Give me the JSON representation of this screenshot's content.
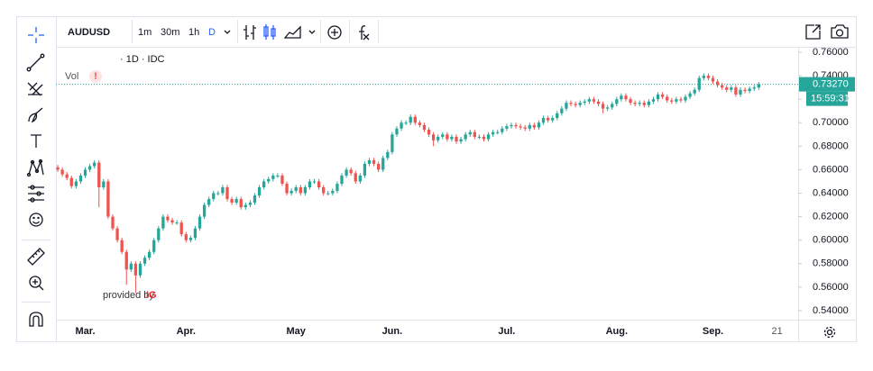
{
  "toolbar": {
    "symbol": "AUDUSD",
    "intervals": [
      "1m",
      "30m",
      "1h",
      "D"
    ]
  },
  "chart_data": {
    "type": "candlestick",
    "legend_text": "· 1D · IDC",
    "volume_label": "Vol",
    "volume_warning": "!",
    "attribution": "provided by",
    "attribution_brand": "IG",
    "up_color": "#26a69a",
    "down_color": "#ef5350",
    "grid": false,
    "last_price": {
      "value": 0.7327,
      "label": "0.73270"
    },
    "countdown": "15:59:31",
    "ylim": [
      0.5323,
      0.7646
    ],
    "yticks": [
      {
        "value": 0.54,
        "label": "0.54000"
      },
      {
        "value": 0.56,
        "label": "0.56000"
      },
      {
        "value": 0.58,
        "label": "0.58000"
      },
      {
        "value": 0.6,
        "label": "0.60000"
      },
      {
        "value": 0.62,
        "label": "0.62000"
      },
      {
        "value": 0.64,
        "label": "0.64000"
      },
      {
        "value": 0.66,
        "label": "0.66000"
      },
      {
        "value": 0.68,
        "label": "0.68000"
      },
      {
        "value": 0.7,
        "label": "0.70000"
      },
      {
        "value": 0.72,
        "label": "0.72000"
      },
      {
        "value": 0.74,
        "label": "0.74000"
      },
      {
        "value": 0.76,
        "label": "0.76000"
      }
    ],
    "xlim": [
      -0.4,
      161.6
    ],
    "xticks": [
      {
        "value": 6,
        "label": "Mar."
      },
      {
        "value": 28,
        "label": "Apr."
      },
      {
        "value": 52,
        "label": "May"
      },
      {
        "value": 73,
        "label": "Jun."
      },
      {
        "value": 98,
        "label": "Jul."
      },
      {
        "value": 122,
        "label": "Aug."
      },
      {
        "value": 143,
        "label": "Sep."
      },
      {
        "value": 157,
        "label": "21"
      }
    ],
    "ohlc": [
      [
        0.662,
        0.664,
        0.658,
        0.66
      ],
      [
        0.66,
        0.662,
        0.654,
        0.656
      ],
      [
        0.656,
        0.658,
        0.651,
        0.653
      ],
      [
        0.653,
        0.655,
        0.644,
        0.646
      ],
      [
        0.646,
        0.652,
        0.644,
        0.65
      ],
      [
        0.65,
        0.657,
        0.648,
        0.655
      ],
      [
        0.655,
        0.662,
        0.653,
        0.66
      ],
      [
        0.66,
        0.665,
        0.658,
        0.663
      ],
      [
        0.663,
        0.668,
        0.661,
        0.666
      ],
      [
        0.666,
        0.668,
        0.628,
        0.645
      ],
      [
        0.645,
        0.652,
        0.643,
        0.65
      ],
      [
        0.65,
        0.652,
        0.618,
        0.62
      ],
      [
        0.62,
        0.622,
        0.608,
        0.61
      ],
      [
        0.61,
        0.612,
        0.598,
        0.6
      ],
      [
        0.6,
        0.602,
        0.588,
        0.59
      ],
      [
        0.59,
        0.592,
        0.562,
        0.575
      ],
      [
        0.575,
        0.582,
        0.573,
        0.58
      ],
      [
        0.58,
        0.582,
        0.555,
        0.57
      ],
      [
        0.57,
        0.582,
        0.568,
        0.58
      ],
      [
        0.58,
        0.587,
        0.578,
        0.585
      ],
      [
        0.585,
        0.592,
        0.583,
        0.59
      ],
      [
        0.59,
        0.602,
        0.588,
        0.6
      ],
      [
        0.6,
        0.612,
        0.598,
        0.61
      ],
      [
        0.61,
        0.622,
        0.608,
        0.62
      ],
      [
        0.62,
        0.622,
        0.615,
        0.617
      ],
      [
        0.617,
        0.619,
        0.613,
        0.615
      ],
      [
        0.615,
        0.617,
        0.613,
        0.615
      ],
      [
        0.615,
        0.617,
        0.603,
        0.605
      ],
      [
        0.605,
        0.607,
        0.598,
        0.6
      ],
      [
        0.6,
        0.604,
        0.598,
        0.602
      ],
      [
        0.602,
        0.612,
        0.6,
        0.61
      ],
      [
        0.61,
        0.622,
        0.608,
        0.62
      ],
      [
        0.62,
        0.632,
        0.618,
        0.63
      ],
      [
        0.63,
        0.637,
        0.628,
        0.635
      ],
      [
        0.635,
        0.642,
        0.633,
        0.64
      ],
      [
        0.64,
        0.642,
        0.638,
        0.64
      ],
      [
        0.64,
        0.647,
        0.638,
        0.645
      ],
      [
        0.645,
        0.647,
        0.633,
        0.635
      ],
      [
        0.635,
        0.637,
        0.63,
        0.632
      ],
      [
        0.632,
        0.637,
        0.63,
        0.635
      ],
      [
        0.635,
        0.637,
        0.626,
        0.628
      ],
      [
        0.628,
        0.632,
        0.626,
        0.63
      ],
      [
        0.63,
        0.634,
        0.628,
        0.632
      ],
      [
        0.632,
        0.64,
        0.63,
        0.638
      ],
      [
        0.638,
        0.647,
        0.636,
        0.645
      ],
      [
        0.645,
        0.652,
        0.643,
        0.65
      ],
      [
        0.65,
        0.654,
        0.648,
        0.652
      ],
      [
        0.652,
        0.657,
        0.65,
        0.655
      ],
      [
        0.655,
        0.657,
        0.653,
        0.655
      ],
      [
        0.655,
        0.657,
        0.646,
        0.648
      ],
      [
        0.648,
        0.65,
        0.638,
        0.64
      ],
      [
        0.64,
        0.644,
        0.638,
        0.642
      ],
      [
        0.642,
        0.647,
        0.64,
        0.645
      ],
      [
        0.645,
        0.647,
        0.638,
        0.64
      ],
      [
        0.64,
        0.647,
        0.638,
        0.645
      ],
      [
        0.645,
        0.652,
        0.643,
        0.65
      ],
      [
        0.65,
        0.652,
        0.648,
        0.65
      ],
      [
        0.65,
        0.652,
        0.643,
        0.645
      ],
      [
        0.645,
        0.647,
        0.638,
        0.64
      ],
      [
        0.64,
        0.642,
        0.638,
        0.64
      ],
      [
        0.64,
        0.644,
        0.638,
        0.642
      ],
      [
        0.642,
        0.65,
        0.64,
        0.648
      ],
      [
        0.648,
        0.657,
        0.646,
        0.655
      ],
      [
        0.655,
        0.662,
        0.653,
        0.66
      ],
      [
        0.66,
        0.662,
        0.655,
        0.657
      ],
      [
        0.657,
        0.659,
        0.648,
        0.65
      ],
      [
        0.65,
        0.657,
        0.648,
        0.655
      ],
      [
        0.655,
        0.667,
        0.653,
        0.665
      ],
      [
        0.665,
        0.67,
        0.663,
        0.668
      ],
      [
        0.668,
        0.67,
        0.663,
        0.665
      ],
      [
        0.665,
        0.667,
        0.658,
        0.66
      ],
      [
        0.66,
        0.672,
        0.658,
        0.67
      ],
      [
        0.67,
        0.677,
        0.668,
        0.675
      ],
      [
        0.675,
        0.692,
        0.673,
        0.69
      ],
      [
        0.69,
        0.697,
        0.688,
        0.695
      ],
      [
        0.695,
        0.702,
        0.693,
        0.7
      ],
      [
        0.7,
        0.702,
        0.698,
        0.7
      ],
      [
        0.7,
        0.707,
        0.698,
        0.705
      ],
      [
        0.705,
        0.707,
        0.698,
        0.7
      ],
      [
        0.7,
        0.702,
        0.696,
        0.698
      ],
      [
        0.698,
        0.7,
        0.692,
        0.694
      ],
      [
        0.694,
        0.696,
        0.688,
        0.69
      ],
      [
        0.69,
        0.692,
        0.68,
        0.685
      ],
      [
        0.685,
        0.69,
        0.683,
        0.688
      ],
      [
        0.688,
        0.692,
        0.686,
        0.69
      ],
      [
        0.69,
        0.692,
        0.684,
        0.686
      ],
      [
        0.686,
        0.69,
        0.684,
        0.688
      ],
      [
        0.688,
        0.69,
        0.682,
        0.684
      ],
      [
        0.684,
        0.688,
        0.682,
        0.686
      ],
      [
        0.686,
        0.692,
        0.684,
        0.69
      ],
      [
        0.69,
        0.694,
        0.688,
        0.692
      ],
      [
        0.692,
        0.694,
        0.686,
        0.688
      ],
      [
        0.688,
        0.69,
        0.686,
        0.688
      ],
      [
        0.688,
        0.69,
        0.684,
        0.686
      ],
      [
        0.686,
        0.692,
        0.684,
        0.69
      ],
      [
        0.69,
        0.694,
        0.688,
        0.692
      ],
      [
        0.692,
        0.694,
        0.69,
        0.692
      ],
      [
        0.692,
        0.697,
        0.69,
        0.695
      ],
      [
        0.695,
        0.699,
        0.693,
        0.697
      ],
      [
        0.697,
        0.7,
        0.695,
        0.698
      ],
      [
        0.698,
        0.7,
        0.695,
        0.697
      ],
      [
        0.697,
        0.699,
        0.694,
        0.696
      ],
      [
        0.696,
        0.698,
        0.693,
        0.695
      ],
      [
        0.695,
        0.7,
        0.693,
        0.698
      ],
      [
        0.698,
        0.7,
        0.694,
        0.696
      ],
      [
        0.696,
        0.702,
        0.694,
        0.7
      ],
      [
        0.7,
        0.706,
        0.698,
        0.704
      ],
      [
        0.704,
        0.706,
        0.7,
        0.702
      ],
      [
        0.702,
        0.706,
        0.7,
        0.704
      ],
      [
        0.704,
        0.71,
        0.702,
        0.708
      ],
      [
        0.708,
        0.714,
        0.706,
        0.712
      ],
      [
        0.712,
        0.719,
        0.71,
        0.717
      ],
      [
        0.717,
        0.719,
        0.714,
        0.716
      ],
      [
        0.716,
        0.718,
        0.713,
        0.715
      ],
      [
        0.715,
        0.719,
        0.713,
        0.717
      ],
      [
        0.717,
        0.72,
        0.715,
        0.718
      ],
      [
        0.718,
        0.722,
        0.716,
        0.72
      ],
      [
        0.72,
        0.722,
        0.716,
        0.718
      ],
      [
        0.718,
        0.72,
        0.714,
        0.716
      ],
      [
        0.716,
        0.718,
        0.708,
        0.712
      ],
      [
        0.712,
        0.715,
        0.71,
        0.713
      ],
      [
        0.713,
        0.718,
        0.711,
        0.716
      ],
      [
        0.716,
        0.722,
        0.714,
        0.72
      ],
      [
        0.72,
        0.725,
        0.718,
        0.723
      ],
      [
        0.723,
        0.725,
        0.718,
        0.72
      ],
      [
        0.72,
        0.722,
        0.715,
        0.717
      ],
      [
        0.717,
        0.719,
        0.714,
        0.716
      ],
      [
        0.716,
        0.719,
        0.714,
        0.717
      ],
      [
        0.717,
        0.719,
        0.713,
        0.715
      ],
      [
        0.715,
        0.72,
        0.713,
        0.718
      ],
      [
        0.718,
        0.722,
        0.716,
        0.72
      ],
      [
        0.72,
        0.726,
        0.718,
        0.724
      ],
      [
        0.724,
        0.726,
        0.72,
        0.722
      ],
      [
        0.722,
        0.724,
        0.717,
        0.719
      ],
      [
        0.719,
        0.721,
        0.716,
        0.718
      ],
      [
        0.718,
        0.722,
        0.716,
        0.72
      ],
      [
        0.72,
        0.722,
        0.717,
        0.719
      ],
      [
        0.719,
        0.724,
        0.717,
        0.722
      ],
      [
        0.722,
        0.727,
        0.72,
        0.725
      ],
      [
        0.725,
        0.73,
        0.723,
        0.728
      ],
      [
        0.728,
        0.74,
        0.726,
        0.738
      ],
      [
        0.738,
        0.742,
        0.736,
        0.74
      ],
      [
        0.74,
        0.742,
        0.736,
        0.738
      ],
      [
        0.738,
        0.74,
        0.733,
        0.735
      ],
      [
        0.735,
        0.737,
        0.73,
        0.732
      ],
      [
        0.732,
        0.734,
        0.728,
        0.73
      ],
      [
        0.73,
        0.732,
        0.726,
        0.728
      ],
      [
        0.728,
        0.732,
        0.726,
        0.73
      ],
      [
        0.73,
        0.732,
        0.722,
        0.724
      ],
      [
        0.724,
        0.73,
        0.722,
        0.728
      ],
      [
        0.728,
        0.73,
        0.725,
        0.727
      ],
      [
        0.727,
        0.731,
        0.725,
        0.729
      ],
      [
        0.729,
        0.732,
        0.727,
        0.73
      ],
      [
        0.73,
        0.7347,
        0.728,
        0.7327
      ]
    ]
  }
}
